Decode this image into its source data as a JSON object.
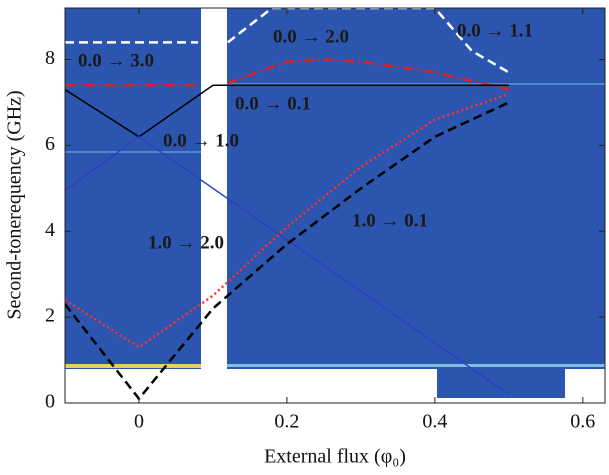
{
  "chart_data": {
    "type": "line",
    "xlabel": "External flux  (φ₀)",
    "ylabel": "Second-tonerequency  (GHz)",
    "xlim": [
      -0.1,
      0.63
    ],
    "ylim": [
      0,
      9.2
    ],
    "xticks": [
      0,
      0.2,
      0.4,
      0.6
    ],
    "yticks": [
      0,
      2,
      4,
      6,
      8
    ],
    "annotations": [
      "0.0 → 3.0",
      "0.0 → 2.0",
      "0.0 → 1.1",
      "0.0 → 0.1",
      "0.0 → 1.0",
      "1.0 → 0.1",
      "1.0 → 2.0"
    ],
    "series": [
      {
        "color": "#ffffff",
        "style": "dashed",
        "x": [
          -0.1,
          0.08,
          0.1,
          0.12,
          0.18,
          0.4,
          0.45,
          0.5
        ],
        "values": [
          8.4,
          8.4,
          null,
          8.4,
          9.2,
          9.2,
          8.2,
          7.7
        ]
      },
      {
        "color": "#e02020",
        "style": "dashdot",
        "x": [
          -0.1,
          0.08,
          0.1,
          0.12,
          0.2,
          0.25,
          0.3,
          0.4,
          0.5
        ],
        "values": [
          7.4,
          7.4,
          null,
          7.45,
          7.95,
          8.0,
          7.95,
          7.7,
          7.3
        ]
      },
      {
        "color": "#000000",
        "style": "solid",
        "x": [
          -0.1,
          0,
          0.1,
          0.5
        ],
        "values": [
          7.3,
          6.2,
          7.4,
          7.4
        ]
      },
      {
        "color": "#3040c0",
        "style": "solid",
        "x": [
          -0.1,
          0,
          0.5
        ],
        "values": [
          4.95,
          6.2,
          0.2
        ]
      },
      {
        "color": "#ff3030",
        "style": "dotted",
        "x": [
          -0.1,
          0,
          0.1,
          0.2,
          0.3,
          0.4,
          0.5
        ],
        "values": [
          2.4,
          1.3,
          2.5,
          4.1,
          5.5,
          6.6,
          7.2
        ]
      },
      {
        "color": "#000000",
        "style": "dashed",
        "x": [
          -0.1,
          0,
          0.1,
          0.2,
          0.3,
          0.4,
          0.5
        ],
        "values": [
          2.3,
          0.1,
          2.2,
          3.7,
          5.0,
          6.2,
          7.0
        ]
      }
    ]
  }
}
